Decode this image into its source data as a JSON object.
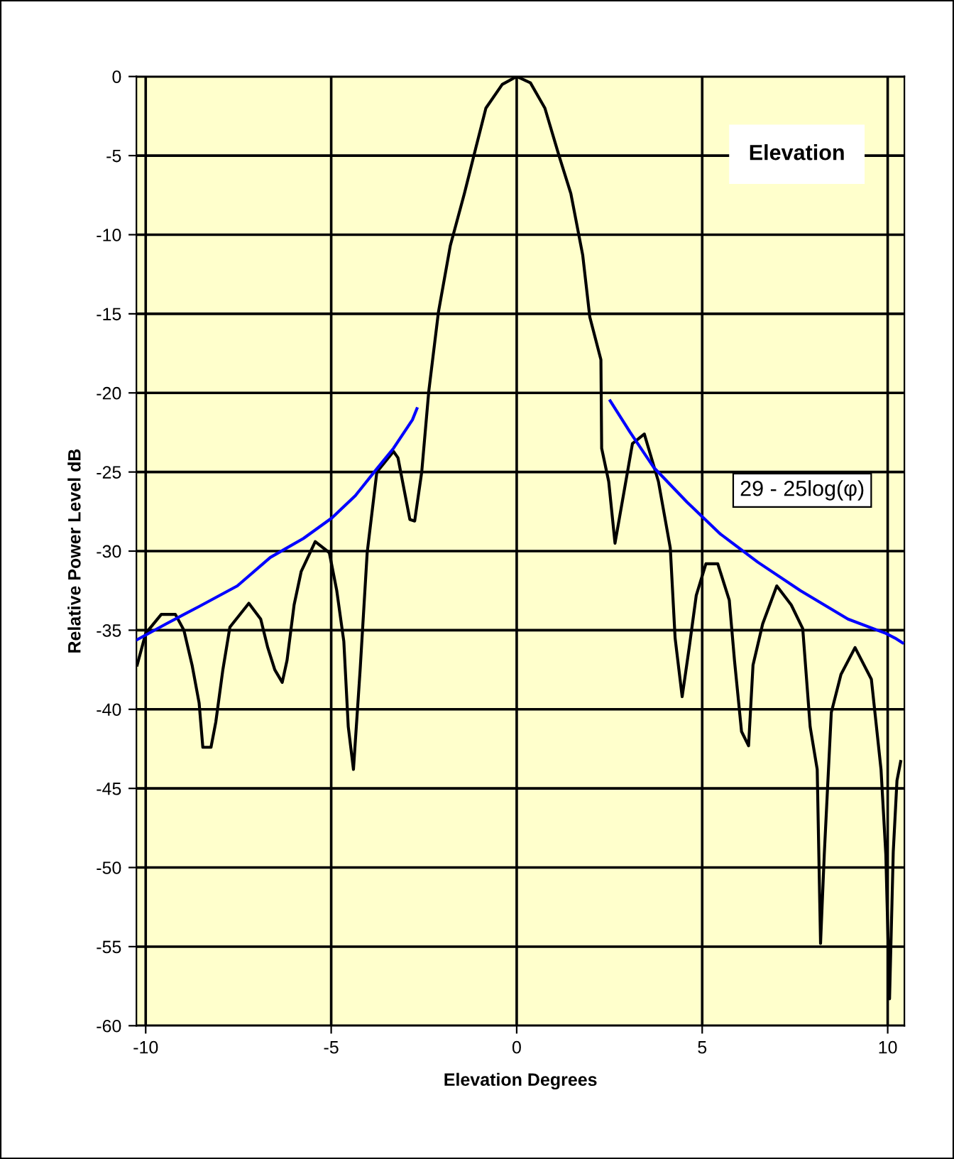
{
  "chart_data": {
    "type": "line",
    "title": "Elevation",
    "xlabel": "Elevation Degrees",
    "ylabel": "Relative Power Level dB",
    "xlim": [
      -10.25,
      10.45
    ],
    "ylim": [
      -60,
      0
    ],
    "xticks": [
      -10,
      -5,
      0,
      5,
      10
    ],
    "yticks": [
      0,
      -5,
      -10,
      -15,
      -20,
      -25,
      -30,
      -35,
      -40,
      -45,
      -50,
      -55,
      -60
    ],
    "grid": true,
    "legend": false,
    "marker": "none",
    "line_style": "solid",
    "series": [
      {
        "color": "#000000",
        "x": [
          -10.23,
          -10.0,
          -9.58,
          -9.2,
          -8.97,
          -8.75,
          -8.56,
          -8.46,
          -8.24,
          -8.11,
          -7.92,
          -7.73,
          -7.22,
          -6.9,
          -6.71,
          -6.52,
          -6.32,
          -6.19,
          -6.0,
          -5.81,
          -5.43,
          -5.05,
          -4.85,
          -4.66,
          -4.54,
          -4.4,
          -4.22,
          -4.03,
          -3.77,
          -3.32,
          -3.2,
          -2.88,
          -2.75,
          -2.56,
          -2.37,
          -2.11,
          -1.79,
          -1.41,
          -1.09,
          -0.83,
          -0.39,
          0.0,
          0.37,
          0.76,
          1.14,
          1.46,
          1.78,
          1.97,
          2.27,
          2.29,
          2.48,
          2.65,
          3.12,
          3.44,
          3.82,
          4.14,
          4.27,
          4.46,
          4.65,
          4.84,
          5.1,
          5.42,
          5.73,
          5.87,
          6.06,
          6.25,
          6.37,
          6.63,
          7.01,
          7.4,
          7.71,
          7.91,
          8.1,
          8.19,
          8.29,
          8.48,
          8.74,
          9.12,
          9.56,
          9.82,
          9.95,
          10.05,
          10.15,
          10.25,
          10.35
        ],
        "values": [
          -37.2,
          -35.2,
          -34.0,
          -34.0,
          -35.0,
          -37.2,
          -39.6,
          -42.4,
          -42.4,
          -40.8,
          -37.5,
          -34.8,
          -33.3,
          -34.3,
          -36.1,
          -37.5,
          -38.3,
          -36.9,
          -33.4,
          -31.3,
          -29.4,
          -30.1,
          -32.5,
          -35.7,
          -41.1,
          -43.8,
          -37.5,
          -30.1,
          -25.0,
          -23.7,
          -24.1,
          -28.0,
          -28.1,
          -25.0,
          -19.9,
          -14.9,
          -10.7,
          -7.4,
          -4.4,
          -2.0,
          -0.5,
          0,
          -0.4,
          -2.0,
          -5.0,
          -7.4,
          -11.3,
          -15.2,
          -17.9,
          -23.5,
          -25.6,
          -29.5,
          -23.2,
          -22.6,
          -25.6,
          -29.8,
          -35.5,
          -39.2,
          -36.1,
          -32.8,
          -30.8,
          -30.8,
          -33.1,
          -36.9,
          -41.4,
          -42.3,
          -37.2,
          -34.6,
          -32.2,
          -33.4,
          -34.9,
          -41.1,
          -43.8,
          -54.8,
          -49.2,
          -40.2,
          -37.8,
          -36.1,
          -38.1,
          -43.8,
          -49.2,
          -58.3,
          -49.0,
          -44.5,
          -43.3
        ]
      },
      {
        "name": "29 - 25log(φ)",
        "color": "#0000ff",
        "x": [
          -10.23,
          -9.45,
          -8.56,
          -7.53,
          -6.64,
          -5.75,
          -4.98,
          -4.35,
          -3.84,
          -3.32,
          -2.81,
          -2.69,
          0,
          2.52,
          3.06,
          3.69,
          4.59,
          5.48,
          6.5,
          7.65,
          8.93,
          9.95,
          10.2,
          10.4
        ],
        "values": [
          -35.6,
          -34.6,
          -33.5,
          -32.2,
          -30.4,
          -29.2,
          -27.9,
          -26.5,
          -25.0,
          -23.5,
          -21.7,
          -21.0,
          null,
          -20.5,
          -22.5,
          -24.7,
          -26.9,
          -28.9,
          -30.7,
          -32.5,
          -34.3,
          -35.2,
          -35.5,
          -35.8
        ]
      }
    ]
  }
}
